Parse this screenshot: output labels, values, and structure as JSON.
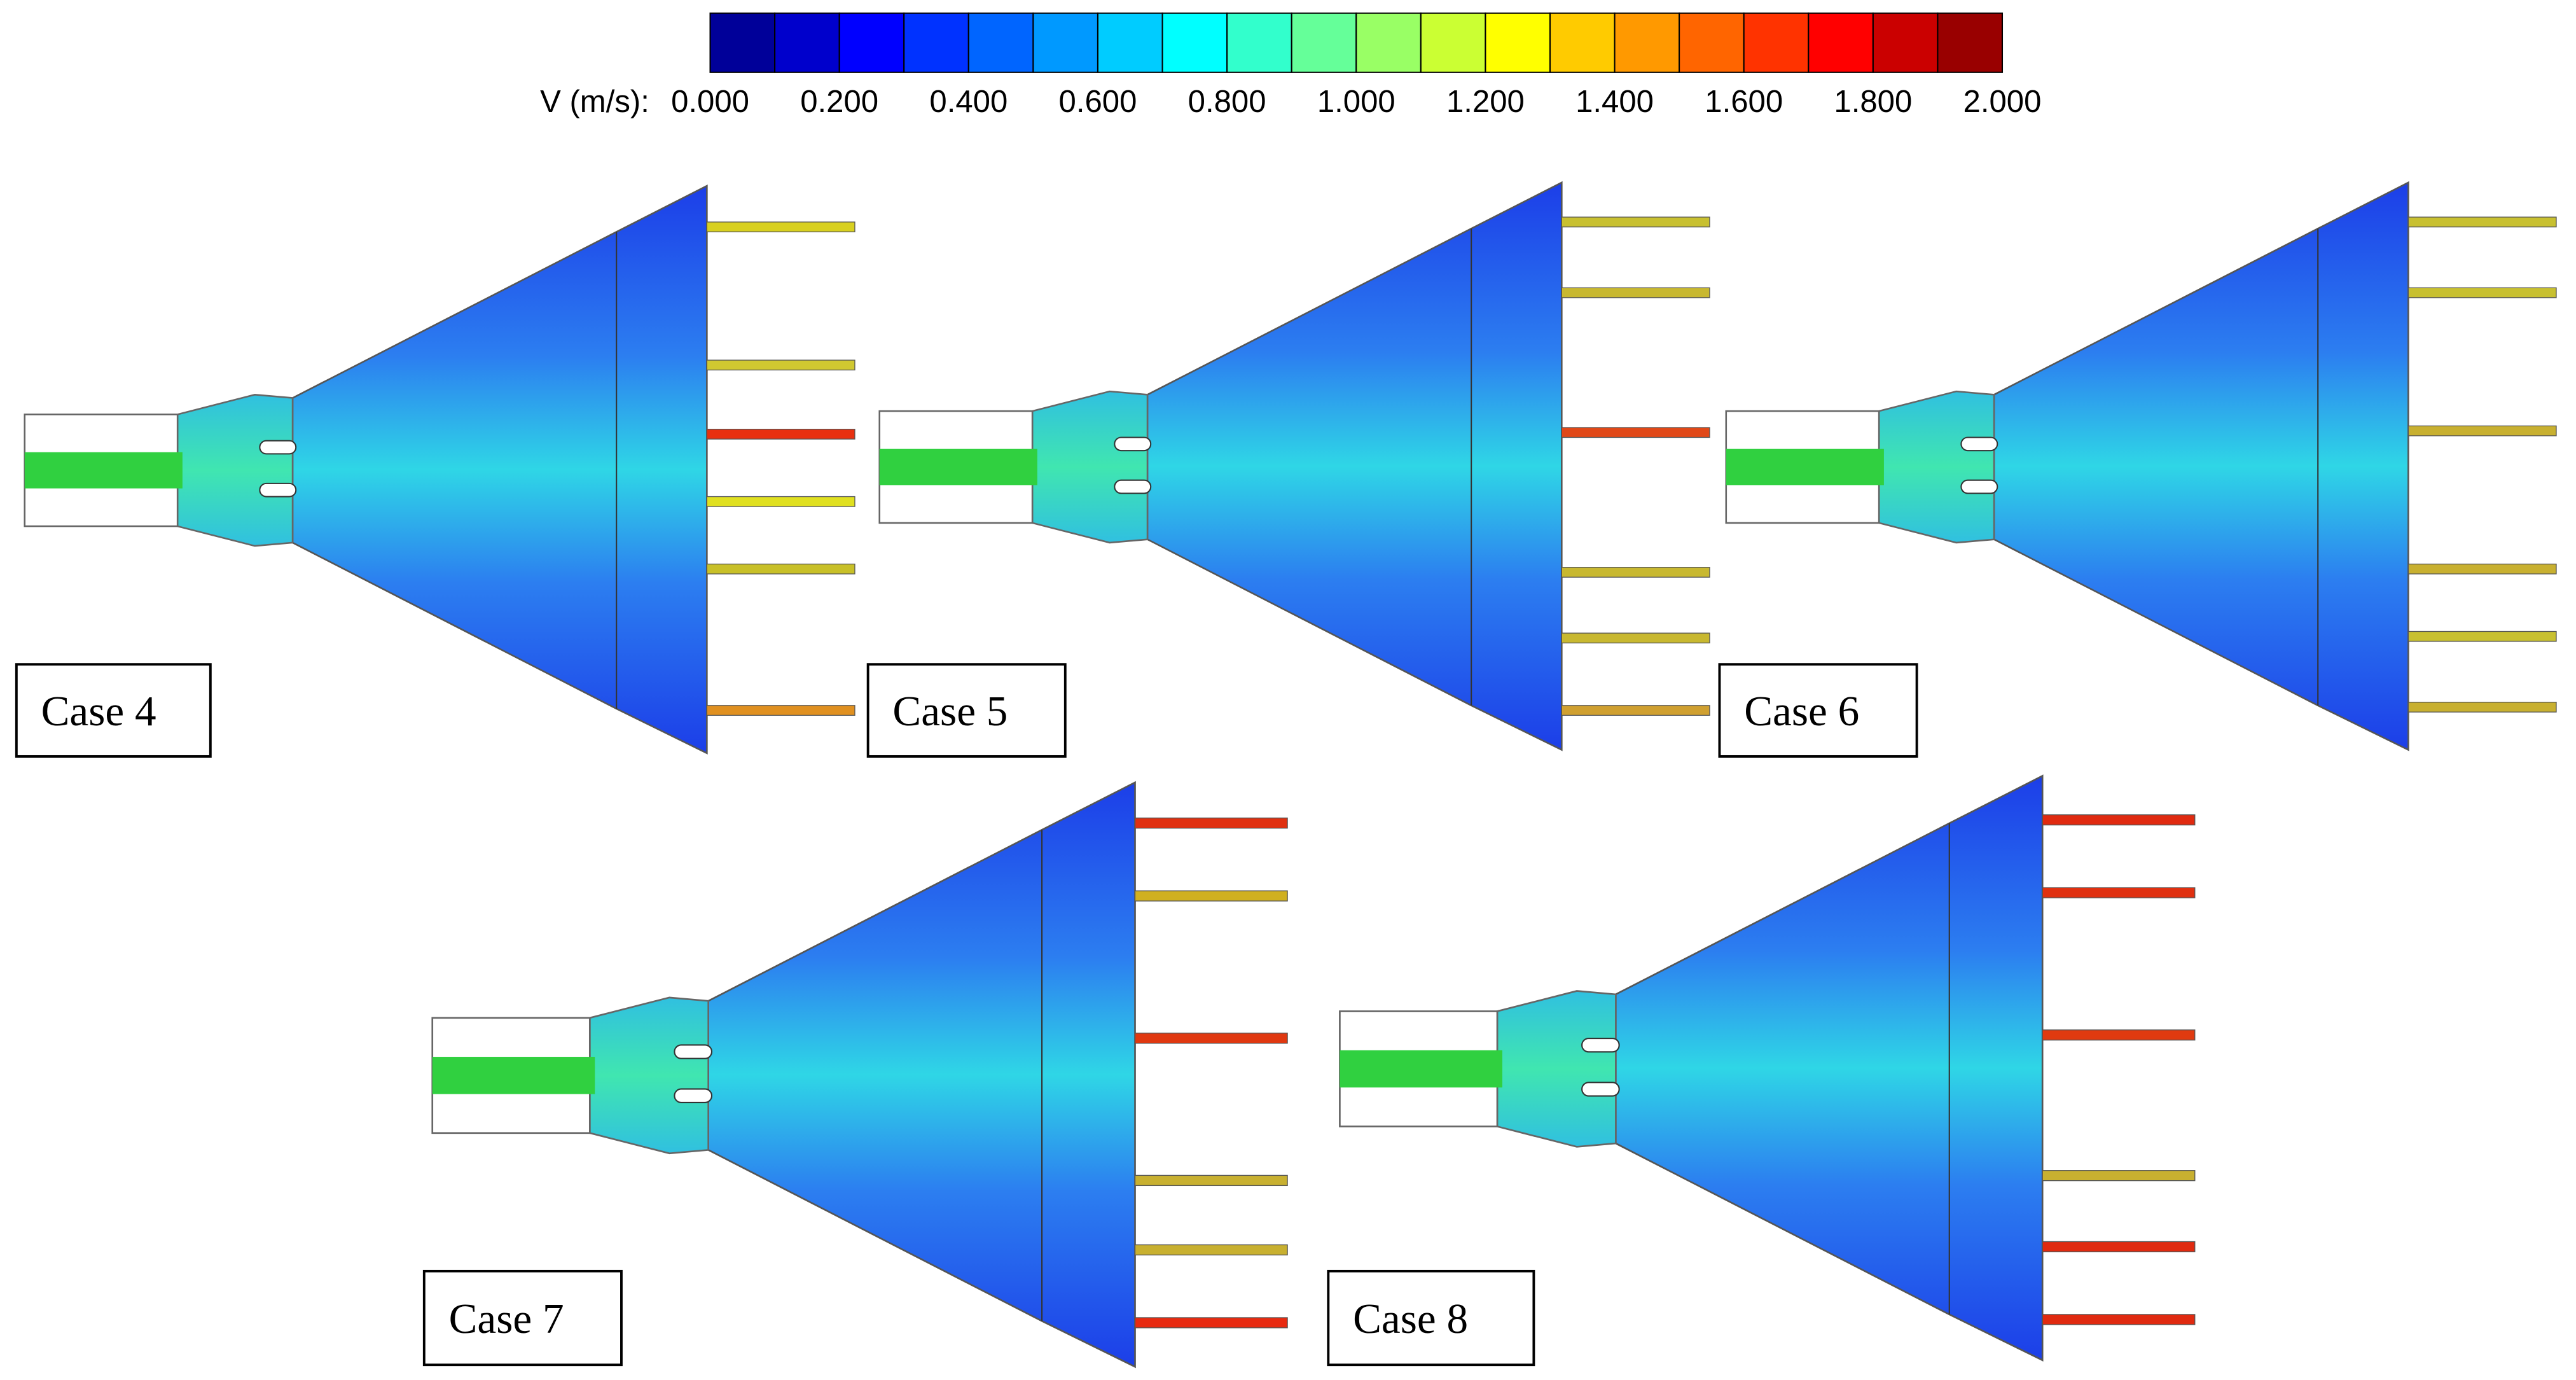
{
  "colorbar": {
    "label": "V (m/s):",
    "ticks": [
      "0.000",
      "0.200",
      "0.400",
      "0.600",
      "0.800",
      "1.000",
      "1.200",
      "1.400",
      "1.600",
      "1.800",
      "2.000"
    ]
  },
  "cases": [
    {
      "label": "Case 4"
    },
    {
      "label": "Case 5"
    },
    {
      "label": "Case 6"
    },
    {
      "label": "Case 7"
    },
    {
      "label": "Case 8"
    }
  ]
}
